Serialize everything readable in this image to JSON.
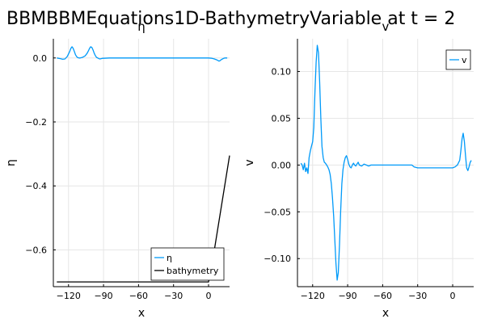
{
  "suptitle": "BBMBBMEquations1D-BathymetryVariable at t = 2",
  "chart_data": [
    {
      "type": "line",
      "title": "η",
      "xlabel": "x",
      "ylabel": "η",
      "xlim": [
        -133,
        18
      ],
      "ylim": [
        -0.715,
        0.06
      ],
      "xticks": [
        -120,
        -90,
        -60,
        -30,
        0
      ],
      "xtick_labels": [
        "−120",
        "−90",
        "−60",
        "−30",
        "0"
      ],
      "yticks": [
        0.0,
        -0.2,
        -0.4,
        -0.6
      ],
      "ytick_labels": [
        "0.0",
        "−0.2",
        "−0.4",
        "−0.6"
      ],
      "grid": true,
      "legend": "bottom-right",
      "series": [
        {
          "name": "η",
          "color": "#009af9",
          "x": [
            -130,
            -127,
            -125,
            -123,
            -121,
            -119,
            -118,
            -117,
            -116,
            -115,
            -114,
            -113,
            -112,
            -111,
            -110,
            -109,
            -108,
            -107,
            -106,
            -105,
            -104,
            -103,
            -102,
            -101,
            -100,
            -99,
            -98,
            -97,
            -96,
            -95,
            -94,
            -93,
            -92,
            -91,
            -90,
            -85,
            -80,
            -70,
            -60,
            -50,
            -40,
            -30,
            -20,
            -10,
            0,
            3,
            5,
            7,
            9,
            10,
            11,
            12,
            13,
            14,
            16
          ],
          "y": [
            0.0,
            -0.002,
            -0.004,
            -0.003,
            0.005,
            0.02,
            0.03,
            0.035,
            0.03,
            0.02,
            0.01,
            0.004,
            0.001,
            0.0,
            0.0,
            0.001,
            0.002,
            0.004,
            0.006,
            0.01,
            0.015,
            0.022,
            0.03,
            0.035,
            0.033,
            0.025,
            0.015,
            0.007,
            0.002,
            0.0,
            -0.002,
            -0.003,
            -0.002,
            -0.001,
            -0.001,
            0.0,
            0.0,
            0.0,
            0.0,
            0.0,
            0.0,
            0.0,
            0.0,
            0.0,
            0.0,
            -0.001,
            -0.003,
            -0.006,
            -0.01,
            -0.008,
            -0.005,
            -0.003,
            -0.001,
            0.0,
            0.0
          ]
        },
        {
          "name": "bathymetry",
          "color": "#000000",
          "x": [
            -130,
            0,
            5,
            18
          ],
          "y": [
            -0.7,
            -0.7,
            -0.6,
            -0.305
          ]
        }
      ]
    },
    {
      "type": "line",
      "title": "v",
      "xlabel": "x",
      "ylabel": "v",
      "xlim": [
        -133,
        18
      ],
      "ylim": [
        -0.13,
        0.135
      ],
      "xticks": [
        -120,
        -90,
        -60,
        -30,
        0
      ],
      "xtick_labels": [
        "−120",
        "−90",
        "−60",
        "−30",
        "0"
      ],
      "yticks": [
        0.1,
        0.05,
        0.0,
        -0.05,
        -0.1
      ],
      "ytick_labels": [
        "0.10",
        "0.05",
        "0.00",
        "−0.05",
        "−0.10"
      ],
      "grid": true,
      "legend": "top-right",
      "series": [
        {
          "name": "v",
          "color": "#009af9",
          "x": [
            -130,
            -129,
            -128,
            -127,
            -126,
            -125,
            -124,
            -123,
            -122,
            -121,
            -120,
            -119,
            -118,
            -117,
            -116,
            -115,
            -114,
            -113,
            -112,
            -111,
            -110,
            -109,
            -108,
            -107,
            -106,
            -105,
            -104,
            -103,
            -102,
            -101,
            -100,
            -99,
            -98,
            -97,
            -96,
            -95,
            -94,
            -93,
            -92,
            -91,
            -90,
            -89,
            -88,
            -87,
            -86,
            -85,
            -84,
            -83,
            -82,
            -81,
            -80,
            -78,
            -76,
            -74,
            -72,
            -70,
            -65,
            -60,
            -50,
            -40,
            -35,
            -33,
            -30,
            -20,
            -10,
            -5,
            0,
            2,
            4,
            6,
            7,
            8,
            9,
            10,
            11,
            12,
            13,
            14,
            15,
            16
          ],
          "y": [
            0.002,
            0.0,
            -0.005,
            0.002,
            -0.007,
            -0.003,
            -0.009,
            0.008,
            0.015,
            0.02,
            0.025,
            0.04,
            0.08,
            0.11,
            0.128,
            0.12,
            0.09,
            0.05,
            0.02,
            0.008,
            0.003,
            0.002,
            0.0,
            -0.002,
            -0.005,
            -0.01,
            -0.02,
            -0.035,
            -0.055,
            -0.08,
            -0.105,
            -0.123,
            -0.115,
            -0.085,
            -0.05,
            -0.02,
            -0.005,
            0.003,
            0.008,
            0.01,
            0.006,
            0.001,
            -0.002,
            -0.003,
            0.0,
            0.002,
            0.0,
            -0.001,
            0.001,
            0.003,
            0.0,
            -0.001,
            0.001,
            0.0,
            -0.001,
            0.0,
            0.0,
            0.0,
            0.0,
            0.0,
            0.0,
            -0.002,
            -0.003,
            -0.003,
            -0.003,
            -0.003,
            -0.003,
            -0.002,
            0.0,
            0.005,
            0.015,
            0.028,
            0.034,
            0.025,
            0.01,
            -0.003,
            -0.006,
            -0.002,
            0.003,
            0.005
          ]
        }
      ]
    }
  ]
}
